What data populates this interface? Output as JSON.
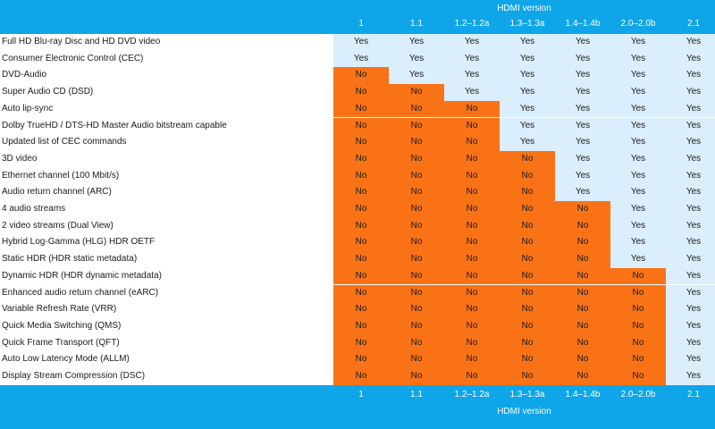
{
  "header": {
    "title": "HDMI version"
  },
  "footer": {
    "title": "HDMI version"
  },
  "versions": [
    "1",
    "1.1",
    "1.2–1.2a",
    "1.3–1.3a",
    "1.4–1.4b",
    "2.0–2.0b",
    "2.1"
  ],
  "colors": {
    "yes_bg": "#dbeefb",
    "no_bg": "#f97316",
    "band": "#0ea5e9"
  },
  "rows": [
    {
      "feature": "Full HD Blu-ray Disc and HD DVD video",
      "values": [
        "Yes",
        "Yes",
        "Yes",
        "Yes",
        "Yes",
        "Yes",
        "Yes"
      ]
    },
    {
      "feature": "Consumer Electronic Control (CEC)",
      "values": [
        "Yes",
        "Yes",
        "Yes",
        "Yes",
        "Yes",
        "Yes",
        "Yes"
      ]
    },
    {
      "feature": "DVD-Audio",
      "values": [
        "No",
        "Yes",
        "Yes",
        "Yes",
        "Yes",
        "Yes",
        "Yes"
      ]
    },
    {
      "feature": "Super Audio CD (DSD)",
      "values": [
        "No",
        "No",
        "Yes",
        "Yes",
        "Yes",
        "Yes",
        "Yes"
      ]
    },
    {
      "feature": "Auto lip-sync",
      "values": [
        "No",
        "No",
        "No",
        "Yes",
        "Yes",
        "Yes",
        "Yes"
      ]
    },
    {
      "feature": "Dolby TrueHD / DTS-HD Master Audio bitstream capable",
      "values": [
        "No",
        "No",
        "No",
        "Yes",
        "Yes",
        "Yes",
        "Yes"
      ]
    },
    {
      "feature": "Updated list of CEC commands",
      "values": [
        "No",
        "No",
        "No",
        "Yes",
        "Yes",
        "Yes",
        "Yes"
      ]
    },
    {
      "feature": "3D video",
      "values": [
        "No",
        "No",
        "No",
        "No",
        "Yes",
        "Yes",
        "Yes"
      ]
    },
    {
      "feature": "Ethernet channel (100 Mbit/s)",
      "values": [
        "No",
        "No",
        "No",
        "No",
        "Yes",
        "Yes",
        "Yes"
      ]
    },
    {
      "feature": "Audio return channel (ARC)",
      "values": [
        "No",
        "No",
        "No",
        "No",
        "Yes",
        "Yes",
        "Yes"
      ]
    },
    {
      "feature": "4 audio streams",
      "values": [
        "No",
        "No",
        "No",
        "No",
        "No",
        "Yes",
        "Yes"
      ]
    },
    {
      "feature": "2 video streams (Dual View)",
      "values": [
        "No",
        "No",
        "No",
        "No",
        "No",
        "Yes",
        "Yes"
      ]
    },
    {
      "feature": "Hybrid Log-Gamma (HLG) HDR OETF",
      "values": [
        "No",
        "No",
        "No",
        "No",
        "No",
        "Yes",
        "Yes"
      ]
    },
    {
      "feature": "Static HDR (HDR static metadata)",
      "values": [
        "No",
        "No",
        "No",
        "No",
        "No",
        "Yes",
        "Yes"
      ]
    },
    {
      "feature": "Dynamic HDR (HDR dynamic metadata)",
      "values": [
        "No",
        "No",
        "No",
        "No",
        "No",
        "No",
        "Yes"
      ]
    },
    {
      "feature": "Enhanced audio return channel (eARC)",
      "values": [
        "No",
        "No",
        "No",
        "No",
        "No",
        "No",
        "Yes"
      ]
    },
    {
      "feature": "Variable Refresh Rate (VRR)",
      "values": [
        "No",
        "No",
        "No",
        "No",
        "No",
        "No",
        "Yes"
      ]
    },
    {
      "feature": "Quick Media Switching (QMS)",
      "values": [
        "No",
        "No",
        "No",
        "No",
        "No",
        "No",
        "Yes"
      ]
    },
    {
      "feature": "Quick Frame Transport (QFT)",
      "values": [
        "No",
        "No",
        "No",
        "No",
        "No",
        "No",
        "Yes"
      ]
    },
    {
      "feature": "Auto Low Latency Mode (ALLM)",
      "values": [
        "No",
        "No",
        "No",
        "No",
        "No",
        "No",
        "Yes"
      ]
    },
    {
      "feature": "Display Stream Compression (DSC)",
      "values": [
        "No",
        "No",
        "No",
        "No",
        "No",
        "No",
        "Yes"
      ]
    }
  ]
}
